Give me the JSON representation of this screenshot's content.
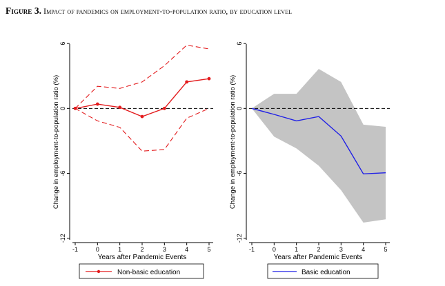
{
  "figure": {
    "title_lead": "Figure 3.",
    "title_rest": "Impact of pandemics on employment-to-population ratio, by education level"
  },
  "colors": {
    "red": "#e31a1c",
    "blue": "#1f1fe6",
    "band": "#c4c4c4",
    "zero_line": "#000000",
    "panel_background": "#ffffff"
  },
  "chart_data": [
    {
      "type": "line",
      "xlabel": "Years after Pandemic Events",
      "ylabel": "Change in employment-to-population ratio (%)",
      "x": [
        -1,
        0,
        1,
        2,
        3,
        4,
        5
      ],
      "xlim": [
        -1.2,
        5.2
      ],
      "ylim": [
        -12.4,
        6.2
      ],
      "yticks": [
        6,
        0,
        -6,
        -12
      ],
      "xticks": [
        -1,
        0,
        1,
        2,
        3,
        4,
        5
      ],
      "grid": false,
      "zero_reference_line": "dashed",
      "legend": "bottom",
      "ci_style": "dashed",
      "series": [
        {
          "name": "Non-basic education",
          "values": [
            0,
            0.4,
            0.1,
            -0.75,
            0,
            2.45,
            2.75
          ],
          "marker": "dot"
        }
      ],
      "ci_upper": [
        0,
        2.05,
        1.85,
        2.45,
        3.95,
        5.85,
        5.5
      ],
      "ci_lower": [
        0,
        -1.15,
        -1.75,
        -3.95,
        -3.8,
        -0.9,
        0
      ]
    },
    {
      "type": "area",
      "xlabel": "Years after Pandemic Events",
      "ylabel": "Change in employment-to-population ratio (%)",
      "x": [
        -1,
        0,
        1,
        2,
        3,
        4,
        5
      ],
      "xlim": [
        -1.2,
        5.2
      ],
      "ylim": [
        -12.4,
        6.2
      ],
      "yticks": [
        6,
        0,
        -6,
        -12
      ],
      "xticks": [
        -1,
        0,
        1,
        2,
        3,
        4,
        5
      ],
      "grid": false,
      "zero_reference_line": "dashed",
      "legend": "bottom",
      "ci_style": "shaded",
      "series": [
        {
          "name": "Basic education",
          "values": [
            0,
            -0.55,
            -1.15,
            -0.75,
            -2.55,
            -6.05,
            -5.95
          ]
        }
      ],
      "ci_upper": [
        0,
        1.35,
        1.35,
        3.65,
        2.45,
        -1.5,
        -1.7
      ],
      "ci_lower": [
        0,
        -2.6,
        -3.7,
        -5.3,
        -7.55,
        -10.55,
        -10.25
      ]
    }
  ]
}
